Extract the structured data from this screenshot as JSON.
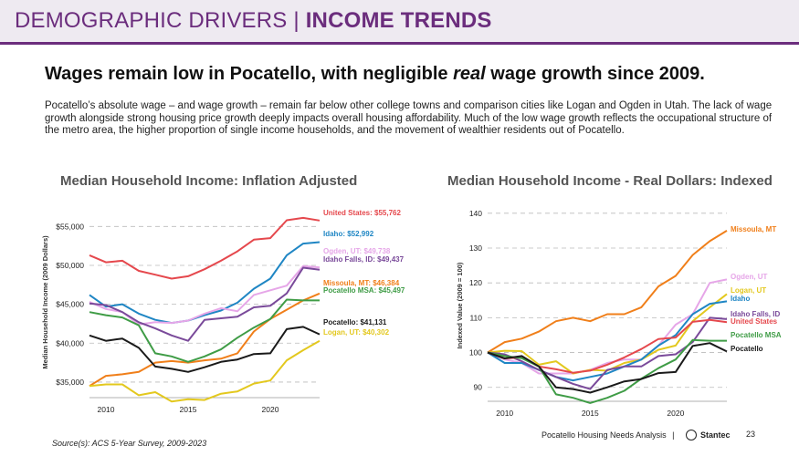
{
  "header": {
    "title_left": "DEMOGRAPHIC DRIVERS",
    "separator": " | ",
    "title_right": "INCOME TRENDS"
  },
  "headline": {
    "pre": "Wages remain low in Pocatello, with negligible ",
    "emph": "real",
    "post": " wage growth since 2009."
  },
  "body_text": "Pocatello’s absolute wage – and wage growth – remain far below other college towns and comparison cities like Logan and Ogden in Utah. The lack of wage growth alongside strong housing price growth deeply impacts overall housing affordability. Much of the low wage growth reflects the occupational structure of the metro area, the higher proportion of single income households, and the movement of wealthier residents out of Pocatello.",
  "source": "Source(s): ACS 5-Year Survey, 2009-2023",
  "footer": {
    "text": "Pocatello Housing Needs Analysis",
    "separator": "|",
    "brand": "Stantec",
    "page": "23"
  },
  "chart_data": [
    {
      "type": "line",
      "title": "Median Household Income: Inflation Adjusted",
      "ylabel": "Median Household Income (2009 Dollars)",
      "xlabel": "",
      "x": [
        2009,
        2010,
        2011,
        2012,
        2013,
        2014,
        2015,
        2016,
        2017,
        2018,
        2019,
        2020,
        2021,
        2022,
        2023
      ],
      "xticks": [
        2010,
        2015,
        2020
      ],
      "ylim": [
        33000,
        57500
      ],
      "yticks": [
        35000,
        40000,
        45000,
        50000,
        55000
      ],
      "ytick_labels": [
        "$35,000",
        "$40,000",
        "$45,000",
        "$50,000",
        "$55,000"
      ],
      "series": [
        {
          "name": "United States",
          "label": "United States: $55,762",
          "color": "#e5484d",
          "values": [
            51300,
            50400,
            50600,
            49300,
            48800,
            48300,
            48600,
            49500,
            50600,
            51800,
            53300,
            53500,
            55800,
            56100,
            55762
          ]
        },
        {
          "name": "Idaho",
          "label": "Idaho: $52,992",
          "color": "#1f86c4",
          "values": [
            46200,
            44700,
            45000,
            43800,
            43000,
            42600,
            42900,
            43600,
            44200,
            45200,
            47000,
            48300,
            51300,
            52800,
            52992
          ]
        },
        {
          "name": "Ogden, UT",
          "label": "Ogden, UT: $49,738",
          "color": "#e6a6e8",
          "values": [
            45300,
            44400,
            44000,
            42400,
            42700,
            42600,
            42900,
            43800,
            44500,
            44100,
            46200,
            46800,
            47400,
            49900,
            49738
          ]
        },
        {
          "name": "Idaho Falls, ID",
          "label": "Idaho Falls, ID: $49,437",
          "color": "#7a4a9a",
          "values": [
            45100,
            44900,
            44000,
            42700,
            41900,
            41000,
            40300,
            43000,
            43200,
            43400,
            44600,
            44800,
            46400,
            49700,
            49437
          ]
        },
        {
          "name": "Missoula, MT",
          "label": "Missoula, MT: $46,384",
          "color": "#f07f1a",
          "values": [
            34500,
            35800,
            36000,
            36300,
            37500,
            37700,
            37500,
            37800,
            38000,
            38700,
            41500,
            43100,
            44300,
            45500,
            46384
          ]
        },
        {
          "name": "Pocatello MSA",
          "label": "Pocatello MSA: $45,497",
          "color": "#3f9c46",
          "values": [
            44000,
            43600,
            43300,
            42300,
            38700,
            38300,
            37600,
            38300,
            39200,
            40700,
            42000,
            43100,
            45600,
            45500,
            45497
          ]
        },
        {
          "name": "Pocatello",
          "label": "Pocatello: $41,131",
          "color": "#1a1a1a",
          "values": [
            41000,
            40300,
            40600,
            39400,
            37000,
            36700,
            36300,
            36900,
            37600,
            37900,
            38600,
            38700,
            41800,
            42100,
            41131
          ]
        },
        {
          "name": "Logan, UT",
          "label": "Logan, UT: $40,302",
          "color": "#e3c81e",
          "values": [
            34500,
            34700,
            34700,
            33300,
            33700,
            32500,
            32800,
            32700,
            33500,
            33800,
            34800,
            35200,
            37800,
            39100,
            40302
          ]
        }
      ]
    },
    {
      "type": "line",
      "title": "Median Household Income - Real Dollars: Indexed",
      "ylabel": "Indexed Value (2009 = 100)",
      "xlabel": "",
      "x": [
        2009,
        2010,
        2011,
        2012,
        2013,
        2014,
        2015,
        2016,
        2017,
        2018,
        2019,
        2020,
        2021,
        2022,
        2023
      ],
      "xticks": [
        2010,
        2015,
        2020
      ],
      "ylim": [
        86,
        141
      ],
      "yticks": [
        90,
        100,
        110,
        120,
        130,
        140
      ],
      "series": [
        {
          "name": "Missoula, MT",
          "label": "Missoula, MT",
          "color": "#f07f1a",
          "values": [
            100,
            103,
            104,
            106,
            109,
            110,
            109,
            111,
            111,
            113,
            119,
            122,
            128,
            132,
            135
          ]
        },
        {
          "name": "Ogden, UT",
          "label": "Ogden, UT",
          "color": "#e6a6e8",
          "values": [
            100,
            98,
            97,
            94,
            94,
            94,
            95,
            97,
            98,
            98,
            102,
            108,
            111,
            120,
            121
          ]
        },
        {
          "name": "Logan, UT",
          "label": "Logan, UT",
          "color": "#e3c81e",
          "values": [
            100,
            100.5,
            100.4,
            96.5,
            97.5,
            94,
            95,
            94.8,
            97,
            98,
            100.8,
            102,
            109,
            113,
            116.8
          ]
        },
        {
          "name": "Idaho",
          "label": "Idaho",
          "color": "#1f86c4",
          "values": [
            100,
            97,
            97,
            95,
            93,
            92,
            93,
            94,
            96,
            98,
            102,
            105,
            111,
            114,
            114.7
          ]
        },
        {
          "name": "Idaho Falls, ID",
          "label": "Idaho Falls, ID",
          "color": "#7a4a9a",
          "values": [
            100,
            99.5,
            97.5,
            95,
            93,
            91,
            89.5,
            95,
            96,
            96,
            99,
            99.5,
            103,
            110,
            109.6
          ]
        },
        {
          "name": "United States",
          "label": "United States",
          "color": "#e5484d",
          "values": [
            100,
            98.3,
            98.6,
            96,
            95.2,
            94.2,
            94.8,
            96.5,
            98.6,
            101,
            103.9,
            104.3,
            108.8,
            109.4,
            108.7
          ]
        },
        {
          "name": "Pocatello MSA",
          "label": "Pocatello MSA",
          "color": "#3f9c46",
          "values": [
            100,
            99,
            98.4,
            96,
            88,
            87,
            85.5,
            87,
            89,
            92.5,
            95.5,
            98,
            103.6,
            103.4,
            103.4
          ]
        },
        {
          "name": "Pocatello",
          "label": "Pocatello",
          "color": "#1a1a1a",
          "values": [
            100,
            98.3,
            99,
            96,
            90,
            89.5,
            88.5,
            90,
            91.7,
            92.4,
            94.1,
            94.4,
            101.9,
            102.7,
            100.3
          ]
        }
      ]
    }
  ]
}
